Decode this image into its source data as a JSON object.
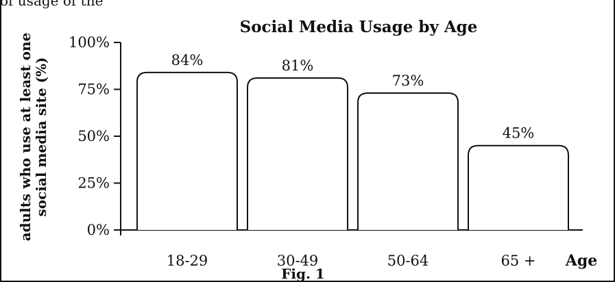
{
  "top_fragment": "of usage of the",
  "chart_data": {
    "type": "bar",
    "title": "Social Media Usage by Age",
    "ylabel": [
      "adults who use at least one",
      "social media site (%)"
    ],
    "xlabel": "Age",
    "caption": "Fig. 1",
    "categories": [
      "18-29",
      "30-49",
      "50-64",
      "65 +"
    ],
    "values": [
      84,
      81,
      73,
      45
    ],
    "data_labels": [
      "84%",
      "81%",
      "73%",
      "45%"
    ],
    "ylim": [
      0,
      100
    ],
    "yticks": [
      {
        "value": 0,
        "label": "0%"
      },
      {
        "value": 25,
        "label": "25%"
      },
      {
        "value": 50,
        "label": "50%"
      },
      {
        "value": 75,
        "label": "75%"
      },
      {
        "value": 100,
        "label": "100%"
      }
    ],
    "grid": false,
    "legend": "none",
    "bar_fill": "#ffffff",
    "bar_stroke": "#111111"
  }
}
